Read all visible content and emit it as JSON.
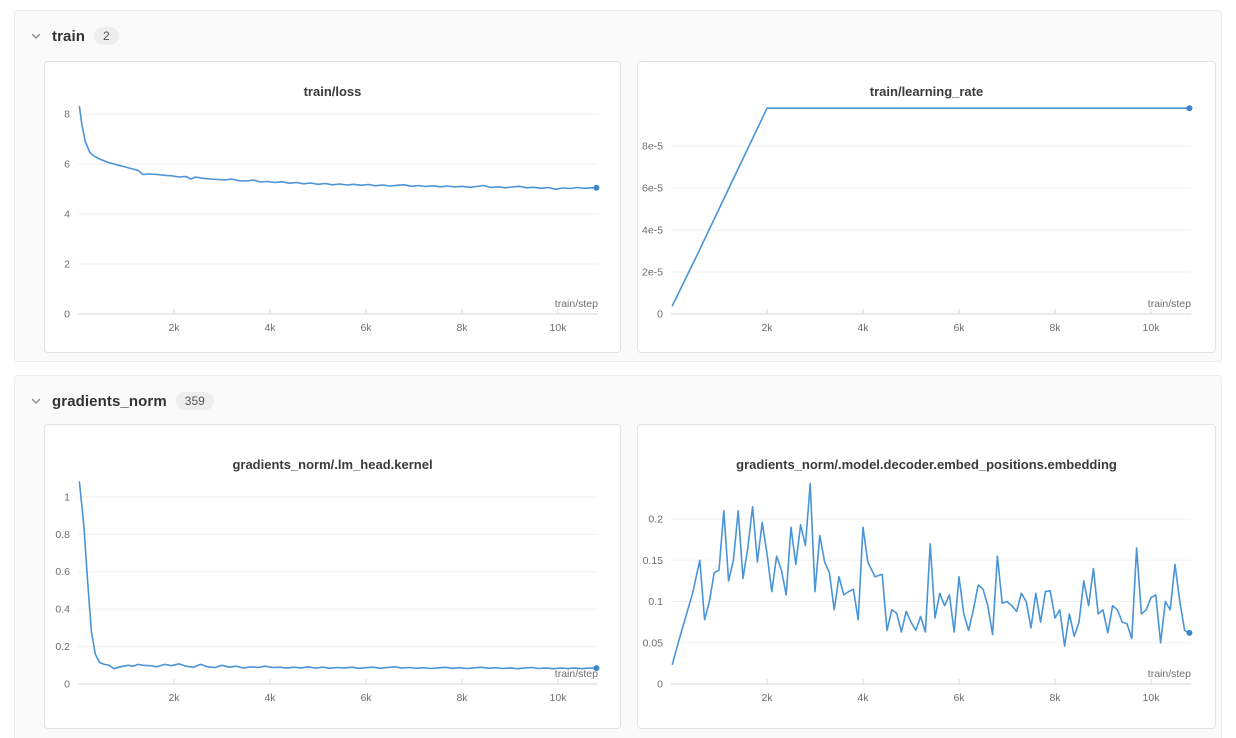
{
  "colors": {
    "line": "#4a94d8",
    "end_dot": "#3d87cf",
    "grid": "#f0f0f0",
    "axis": "#d6d6d6",
    "tick": "#d9d9d9",
    "tick_label": "#6e6e6e",
    "inline_label": "#6e6e6e",
    "chart_title": "#3b3b3b",
    "section_bg": "#fafafa",
    "card_bg": "#ffffff",
    "badge_bg": "#ededed"
  },
  "sections": [
    {
      "label": "train",
      "badge": "2"
    },
    {
      "label": "gradients_norm",
      "badge": "359"
    }
  ],
  "chart_data": [
    {
      "type": "line",
      "title": "train/loss",
      "xlabel": "train/step",
      "ylabel": "",
      "xlim": [
        0,
        10833
      ],
      "ylim": [
        0,
        8.48
      ],
      "grid": true,
      "x_ticks": {
        "values": [
          2000,
          4000,
          6000,
          8000,
          10000
        ],
        "labels": [
          "2k",
          "4k",
          "6k",
          "8k",
          "10k"
        ]
      },
      "y_ticks": {
        "values": [
          0,
          2,
          4,
          6,
          8
        ],
        "labels": [
          "0",
          "2",
          "4",
          "6",
          "8"
        ]
      },
      "end_dot": true,
      "points": [
        [
          30,
          8.3
        ],
        [
          80,
          7.6
        ],
        [
          150,
          6.9
        ],
        [
          250,
          6.45
        ],
        [
          350,
          6.3
        ],
        [
          450,
          6.2
        ],
        [
          550,
          6.12
        ],
        [
          650,
          6.05
        ],
        [
          750,
          6.0
        ],
        [
          850,
          5.95
        ],
        [
          950,
          5.9
        ],
        [
          1100,
          5.82
        ],
        [
          1250,
          5.75
        ],
        [
          1350,
          5.58
        ],
        [
          1500,
          5.6
        ],
        [
          1650,
          5.58
        ],
        [
          1800,
          5.55
        ],
        [
          1950,
          5.53
        ],
        [
          2100,
          5.48
        ],
        [
          2250,
          5.5
        ],
        [
          2350,
          5.4
        ],
        [
          2450,
          5.48
        ],
        [
          2600,
          5.43
        ],
        [
          2750,
          5.4
        ],
        [
          2900,
          5.38
        ],
        [
          3050,
          5.36
        ],
        [
          3200,
          5.4
        ],
        [
          3350,
          5.33
        ],
        [
          3500,
          5.32
        ],
        [
          3650,
          5.36
        ],
        [
          3800,
          5.28
        ],
        [
          3950,
          5.3
        ],
        [
          4100,
          5.26
        ],
        [
          4250,
          5.29
        ],
        [
          4400,
          5.23
        ],
        [
          4550,
          5.26
        ],
        [
          4700,
          5.21
        ],
        [
          4850,
          5.24
        ],
        [
          5000,
          5.19
        ],
        [
          5150,
          5.22
        ],
        [
          5300,
          5.17
        ],
        [
          5450,
          5.2
        ],
        [
          5600,
          5.16
        ],
        [
          5750,
          5.19
        ],
        [
          5900,
          5.15
        ],
        [
          6050,
          5.18
        ],
        [
          6200,
          5.13
        ],
        [
          6350,
          5.16
        ],
        [
          6500,
          5.12
        ],
        [
          6650,
          5.15
        ],
        [
          6800,
          5.17
        ],
        [
          6950,
          5.11
        ],
        [
          7100,
          5.14
        ],
        [
          7250,
          5.1
        ],
        [
          7400,
          5.13
        ],
        [
          7550,
          5.09
        ],
        [
          7700,
          5.12
        ],
        [
          7850,
          5.08
        ],
        [
          8000,
          5.11
        ],
        [
          8150,
          5.07
        ],
        [
          8300,
          5.1
        ],
        [
          8450,
          5.14
        ],
        [
          8600,
          5.06
        ],
        [
          8750,
          5.09
        ],
        [
          8900,
          5.05
        ],
        [
          9050,
          5.08
        ],
        [
          9200,
          5.11
        ],
        [
          9350,
          5.05
        ],
        [
          9500,
          5.07
        ],
        [
          9650,
          5.03
        ],
        [
          9800,
          5.06
        ],
        [
          9950,
          4.99
        ],
        [
          10100,
          5.04
        ],
        [
          10250,
          5.02
        ],
        [
          10400,
          5.06
        ],
        [
          10550,
          5.03
        ],
        [
          10700,
          5.05
        ],
        [
          10800,
          5.05
        ]
      ]
    },
    {
      "type": "line",
      "title": "train/learning_rate",
      "xlabel": "train/step",
      "ylabel": "",
      "xlim": [
        0,
        10833
      ],
      "ylim": [
        0,
        9.81e-05
      ],
      "grid": true,
      "x_ticks": {
        "values": [
          2000,
          4000,
          6000,
          8000,
          10000
        ],
        "labels": [
          "2k",
          "4k",
          "6k",
          "8k",
          "10k"
        ]
      },
      "y_ticks": {
        "values": [
          0,
          2e-05,
          4e-05,
          6e-05,
          8e-05
        ],
        "labels": [
          "0",
          "2e-5",
          "4e-5",
          "6e-5",
          "8e-5"
        ]
      },
      "end_dot": true,
      "points": [
        [
          30,
          4e-06
        ],
        [
          500,
          2.6e-05
        ],
        [
          1000,
          5e-05
        ],
        [
          1500,
          7.4e-05
        ],
        [
          2000,
          9.8e-05
        ],
        [
          4000,
          9.8e-05
        ],
        [
          6000,
          9.8e-05
        ],
        [
          8000,
          9.8e-05
        ],
        [
          10800,
          9.8e-05
        ]
      ]
    },
    {
      "type": "line",
      "title": "gradients_norm/.lm_head.kernel",
      "xlabel": "train/step",
      "ylabel": "",
      "xlim": [
        0,
        10833
      ],
      "ylim": [
        0,
        1.117
      ],
      "grid": true,
      "x_ticks": {
        "values": [
          2000,
          4000,
          6000,
          8000,
          10000
        ],
        "labels": [
          "2k",
          "4k",
          "6k",
          "8k",
          "10k"
        ]
      },
      "y_ticks": {
        "values": [
          0,
          0.2,
          0.4,
          0.6,
          0.8,
          1
        ],
        "labels": [
          "0",
          "0.2",
          "0.4",
          "0.6",
          "0.8",
          "1"
        ]
      },
      "end_dot": true,
      "points": [
        [
          30,
          1.08
        ],
        [
          120,
          0.85
        ],
        [
          200,
          0.55
        ],
        [
          280,
          0.28
        ],
        [
          360,
          0.16
        ],
        [
          450,
          0.115
        ],
        [
          550,
          0.105
        ],
        [
          650,
          0.1
        ],
        [
          750,
          0.082
        ],
        [
          850,
          0.09
        ],
        [
          950,
          0.095
        ],
        [
          1050,
          0.1
        ],
        [
          1150,
          0.095
        ],
        [
          1250,
          0.105
        ],
        [
          1350,
          0.1
        ],
        [
          1500,
          0.098
        ],
        [
          1650,
          0.092
        ],
        [
          1800,
          0.105
        ],
        [
          1950,
          0.098
        ],
        [
          2100,
          0.108
        ],
        [
          2250,
          0.095
        ],
        [
          2400,
          0.09
        ],
        [
          2550,
          0.105
        ],
        [
          2700,
          0.092
        ],
        [
          2850,
          0.088
        ],
        [
          3000,
          0.1
        ],
        [
          3150,
          0.09
        ],
        [
          3300,
          0.095
        ],
        [
          3450,
          0.085
        ],
        [
          3600,
          0.092
        ],
        [
          3750,
          0.088
        ],
        [
          3900,
          0.095
        ],
        [
          4050,
          0.088
        ],
        [
          4200,
          0.09
        ],
        [
          4350,
          0.085
        ],
        [
          4500,
          0.09
        ],
        [
          4650,
          0.086
        ],
        [
          4800,
          0.092
        ],
        [
          4950,
          0.085
        ],
        [
          5100,
          0.09
        ],
        [
          5250,
          0.084
        ],
        [
          5400,
          0.088
        ],
        [
          5550,
          0.085
        ],
        [
          5700,
          0.09
        ],
        [
          5850,
          0.084
        ],
        [
          6000,
          0.087
        ],
        [
          6150,
          0.09
        ],
        [
          6300,
          0.084
        ],
        [
          6450,
          0.088
        ],
        [
          6600,
          0.092
        ],
        [
          6750,
          0.085
        ],
        [
          6900,
          0.088
        ],
        [
          7050,
          0.084
        ],
        [
          7200,
          0.087
        ],
        [
          7350,
          0.083
        ],
        [
          7500,
          0.086
        ],
        [
          7650,
          0.089
        ],
        [
          7800,
          0.084
        ],
        [
          7950,
          0.087
        ],
        [
          8100,
          0.083
        ],
        [
          8250,
          0.086
        ],
        [
          8400,
          0.09
        ],
        [
          8550,
          0.084
        ],
        [
          8700,
          0.087
        ],
        [
          8850,
          0.083
        ],
        [
          9000,
          0.086
        ],
        [
          9150,
          0.082
        ],
        [
          9300,
          0.085
        ],
        [
          9450,
          0.088
        ],
        [
          9600,
          0.083
        ],
        [
          9750,
          0.086
        ],
        [
          9900,
          0.082
        ],
        [
          10050,
          0.085
        ],
        [
          10200,
          0.083
        ],
        [
          10350,
          0.086
        ],
        [
          10500,
          0.082
        ],
        [
          10650,
          0.085
        ],
        [
          10800,
          0.085
        ]
      ]
    },
    {
      "type": "line",
      "title": "gradients_norm/.model.decoder.embed_positions.embedding",
      "xlabel": "train/step",
      "ylabel": "",
      "xlim": [
        0,
        10833
      ],
      "ylim": [
        0,
        0.251
      ],
      "grid": true,
      "x_ticks": {
        "values": [
          2000,
          4000,
          6000,
          8000,
          10000
        ],
        "labels": [
          "2k",
          "4k",
          "6k",
          "8k",
          "10k"
        ]
      },
      "y_ticks": {
        "values": [
          0,
          0.05,
          0.1,
          0.15,
          0.2
        ],
        "labels": [
          "0",
          "0.05",
          "0.1",
          "0.15",
          "0.2"
        ]
      },
      "end_dot": true,
      "points": [
        [
          30,
          0.024
        ],
        [
          150,
          0.05
        ],
        [
          300,
          0.08
        ],
        [
          450,
          0.11
        ],
        [
          600,
          0.15
        ],
        [
          700,
          0.078
        ],
        [
          800,
          0.1
        ],
        [
          900,
          0.135
        ],
        [
          1000,
          0.138
        ],
        [
          1100,
          0.21
        ],
        [
          1200,
          0.125
        ],
        [
          1300,
          0.15
        ],
        [
          1400,
          0.21
        ],
        [
          1500,
          0.128
        ],
        [
          1600,
          0.165
        ],
        [
          1700,
          0.215
        ],
        [
          1800,
          0.148
        ],
        [
          1900,
          0.196
        ],
        [
          2000,
          0.158
        ],
        [
          2100,
          0.112
        ],
        [
          2200,
          0.155
        ],
        [
          2300,
          0.138
        ],
        [
          2400,
          0.108
        ],
        [
          2500,
          0.19
        ],
        [
          2600,
          0.145
        ],
        [
          2700,
          0.193
        ],
        [
          2800,
          0.168
        ],
        [
          2900,
          0.243
        ],
        [
          3000,
          0.112
        ],
        [
          3100,
          0.18
        ],
        [
          3200,
          0.148
        ],
        [
          3300,
          0.135
        ],
        [
          3400,
          0.09
        ],
        [
          3500,
          0.13
        ],
        [
          3600,
          0.108
        ],
        [
          3700,
          0.112
        ],
        [
          3800,
          0.115
        ],
        [
          3900,
          0.078
        ],
        [
          4000,
          0.19
        ],
        [
          4100,
          0.148
        ],
        [
          4250,
          0.13
        ],
        [
          4400,
          0.133
        ],
        [
          4500,
          0.065
        ],
        [
          4600,
          0.09
        ],
        [
          4700,
          0.086
        ],
        [
          4800,
          0.063
        ],
        [
          4900,
          0.088
        ],
        [
          5000,
          0.075
        ],
        [
          5100,
          0.065
        ],
        [
          5200,
          0.082
        ],
        [
          5300,
          0.063
        ],
        [
          5400,
          0.17
        ],
        [
          5500,
          0.08
        ],
        [
          5600,
          0.11
        ],
        [
          5700,
          0.095
        ],
        [
          5800,
          0.108
        ],
        [
          5900,
          0.063
        ],
        [
          6000,
          0.13
        ],
        [
          6100,
          0.085
        ],
        [
          6200,
          0.065
        ],
        [
          6300,
          0.09
        ],
        [
          6400,
          0.12
        ],
        [
          6500,
          0.115
        ],
        [
          6600,
          0.095
        ],
        [
          6700,
          0.06
        ],
        [
          6800,
          0.155
        ],
        [
          6900,
          0.098
        ],
        [
          7000,
          0.1
        ],
        [
          7100,
          0.095
        ],
        [
          7200,
          0.088
        ],
        [
          7300,
          0.11
        ],
        [
          7400,
          0.1
        ],
        [
          7500,
          0.068
        ],
        [
          7600,
          0.11
        ],
        [
          7700,
          0.075
        ],
        [
          7800,
          0.112
        ],
        [
          7900,
          0.113
        ],
        [
          8000,
          0.08
        ],
        [
          8100,
          0.09
        ],
        [
          8200,
          0.046
        ],
        [
          8300,
          0.085
        ],
        [
          8400,
          0.058
        ],
        [
          8500,
          0.075
        ],
        [
          8600,
          0.125
        ],
        [
          8700,
          0.095
        ],
        [
          8800,
          0.14
        ],
        [
          8900,
          0.085
        ],
        [
          9000,
          0.09
        ],
        [
          9100,
          0.062
        ],
        [
          9200,
          0.095
        ],
        [
          9300,
          0.09
        ],
        [
          9400,
          0.075
        ],
        [
          9500,
          0.073
        ],
        [
          9600,
          0.055
        ],
        [
          9700,
          0.165
        ],
        [
          9800,
          0.085
        ],
        [
          9900,
          0.09
        ],
        [
          10000,
          0.105
        ],
        [
          10100,
          0.108
        ],
        [
          10200,
          0.05
        ],
        [
          10300,
          0.1
        ],
        [
          10400,
          0.09
        ],
        [
          10500,
          0.145
        ],
        [
          10600,
          0.1
        ],
        [
          10700,
          0.065
        ],
        [
          10800,
          0.062
        ]
      ]
    }
  ]
}
